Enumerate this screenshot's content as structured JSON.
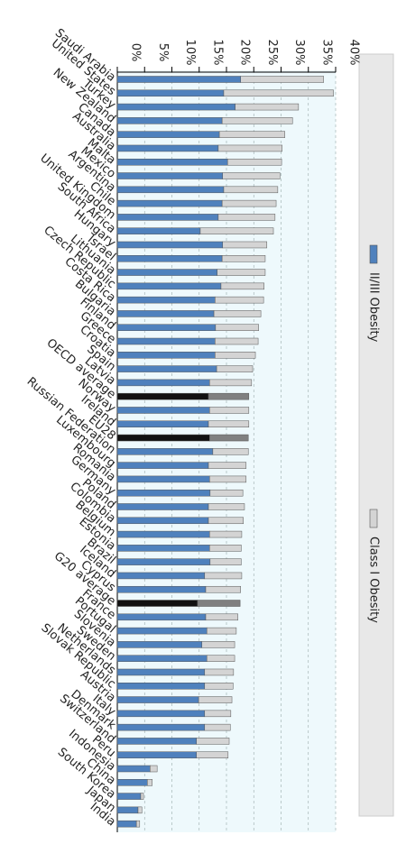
{
  "chart_data": {
    "type": "stacked_bar",
    "orientation": "rotated",
    "categories": [
      "Saudi Arabia",
      "United States",
      "Turkey",
      "New Zealand",
      "Canada",
      "Australia",
      "Malta",
      "Mexico",
      "Argentina",
      "Chile",
      "United Kingdom",
      "South Africa",
      "Hungary",
      "Israel",
      "Lithuania",
      "Czech Republic",
      "Costa Rica",
      "Bulgaria",
      "Finland",
      "Greece",
      "Croatia",
      "Spain",
      "Latvia",
      "OECD average",
      "Norway",
      "Ireland",
      "EU28",
      "Russian Federation",
      "Luxembourg",
      "Romania",
      "Germany",
      "Poland",
      "Colombia",
      "Belgium",
      "Estonia",
      "Brazil",
      "Iceland",
      "Cyprus",
      "G20 average",
      "France",
      "Portugal",
      "Slovenia",
      "Sweden",
      "Netherlands",
      "Slovak Republic",
      "Austria",
      "Italy",
      "Denmark",
      "Switzerland",
      "Peru",
      "Indonesia",
      "China",
      "South Korea",
      "Japan",
      "India"
    ],
    "series": [
      {
        "name": "II/III Obesity",
        "color": "#4f81bd",
        "highlight_color": "#111111",
        "highlight": [
          23,
          26,
          38
        ],
        "values": [
          22.6,
          19.5,
          21.6,
          19.2,
          18.7,
          18.5,
          20.2,
          19.3,
          19.5,
          19.2,
          18.5,
          15.2,
          19.3,
          19.2,
          18.3,
          19.0,
          17.9,
          17.7,
          18.0,
          17.9,
          17.9,
          18.2,
          16.9,
          16.7,
          16.9,
          16.7,
          16.9,
          17.5,
          16.7,
          16.9,
          17.0,
          16.7,
          16.7,
          16.9,
          16.9,
          17.0,
          16.0,
          16.2,
          14.7,
          16.2,
          16.4,
          15.5,
          16.4,
          16.0,
          16.0,
          14.9,
          16.0,
          16.0,
          14.5,
          14.5,
          6.0,
          5.5,
          4.3,
          3.8,
          3.5
        ]
      },
      {
        "name": "Class I Obesity",
        "color": "#d4d4d4",
        "highlight_color": "#808080",
        "highlight": [
          23,
          26,
          38
        ],
        "values": [
          15.2,
          20.1,
          11.6,
          12.9,
          12.0,
          11.7,
          9.9,
          10.5,
          9.9,
          9.9,
          10.4,
          13.4,
          8.1,
          7.9,
          8.8,
          7.9,
          8.9,
          8.6,
          7.9,
          7.9,
          7.4,
          6.6,
          7.7,
          7.4,
          7.2,
          7.4,
          7.1,
          6.5,
          6.9,
          6.7,
          6.0,
          6.6,
          6.4,
          5.9,
          5.8,
          5.7,
          6.8,
          6.4,
          7.8,
          5.9,
          5.4,
          6.0,
          5.1,
          5.3,
          5.2,
          6.1,
          4.8,
          4.7,
          6.0,
          5.8,
          1.3,
          0.9,
          0.5,
          0.7,
          0.6
        ]
      }
    ],
    "xlim": [
      0,
      40
    ],
    "xticks": [
      {
        "value": 0,
        "label": "0%"
      },
      {
        "value": 5,
        "label": "5%"
      },
      {
        "value": 10,
        "label": "10%"
      },
      {
        "value": 15,
        "label": "15%"
      },
      {
        "value": 20,
        "label": "20%"
      },
      {
        "value": 25,
        "label": "25%"
      },
      {
        "value": 30,
        "label": "30%"
      },
      {
        "value": 35,
        "label": "35%"
      },
      {
        "value": 40,
        "label": "40%"
      }
    ],
    "legend": "right"
  }
}
